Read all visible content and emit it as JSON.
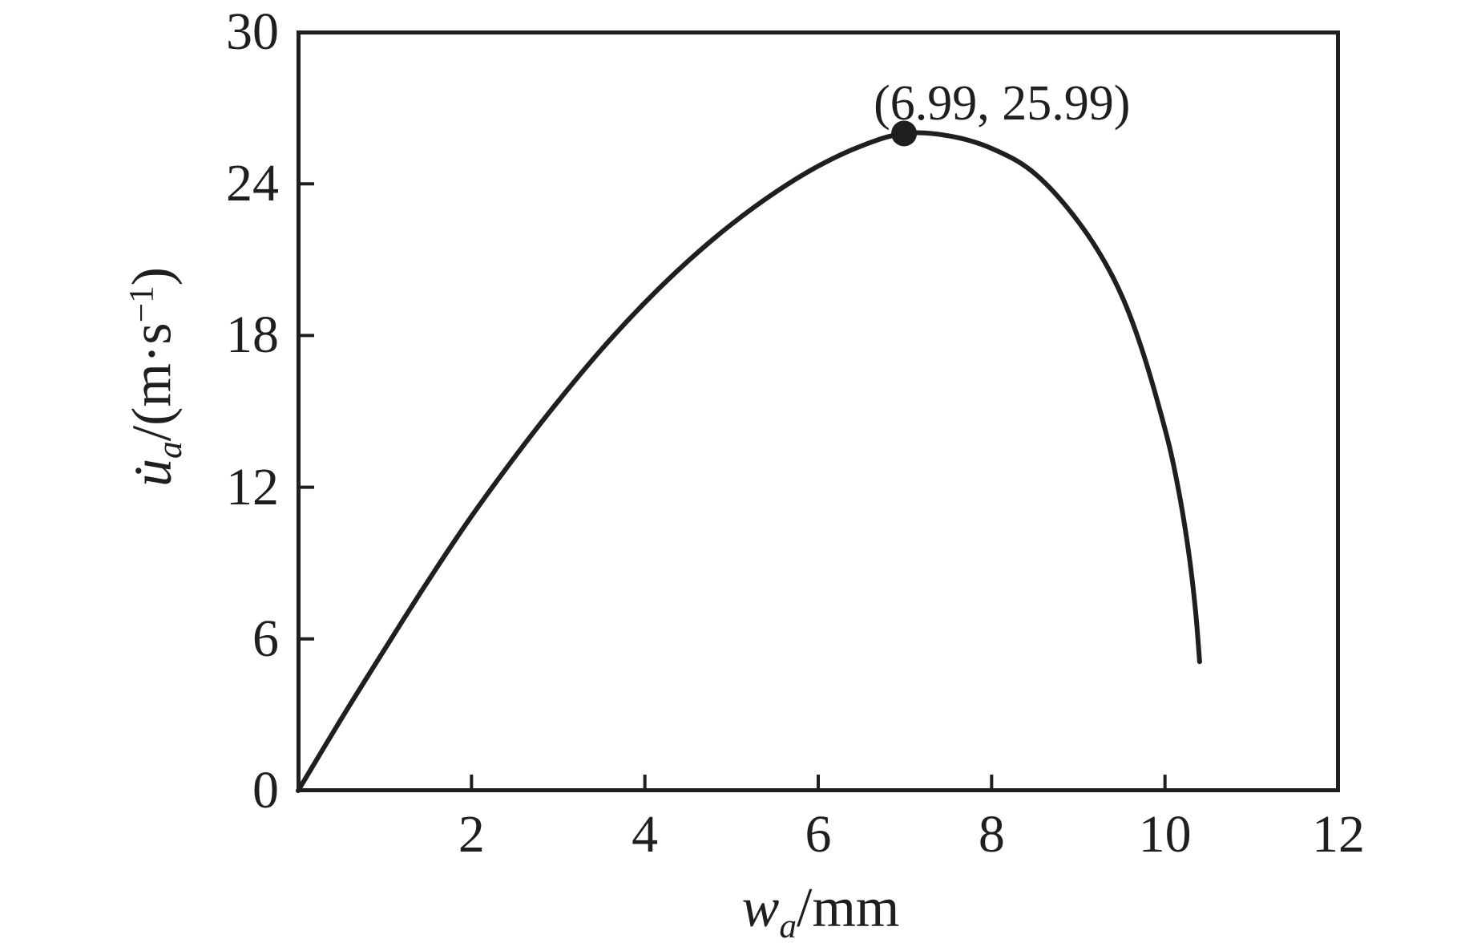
{
  "chart_data": {
    "type": "line",
    "title": "",
    "xlabel": {
      "variable": "w",
      "subscript": "a",
      "unit": "/mm"
    },
    "ylabel": {
      "variable": "u̇",
      "subscript": "a",
      "unit_prefix": "/(m·s",
      "unit_superscript": "−1",
      "unit_suffix": ")"
    },
    "xlim": [
      0,
      12
    ],
    "ylim": [
      0,
      30
    ],
    "x_tick_values": [
      2,
      4,
      6,
      8,
      10,
      12
    ],
    "x_tick_labels": [
      "2",
      "4",
      "6",
      "8",
      "10",
      "12"
    ],
    "y_tick_values": [
      0,
      6,
      12,
      18,
      24,
      30
    ],
    "y_tick_labels": [
      "0",
      "6",
      "12",
      "18",
      "24",
      "30"
    ],
    "grid": false,
    "legend": null,
    "line_color": "#1f1f1f",
    "background_color": "#ffffff",
    "peak_marker": {
      "x": 6.99,
      "y": 25.99
    },
    "annotation": {
      "text": "(6.99, 25.99)",
      "anchor_x": 6.99,
      "anchor_y": 25.99
    },
    "series": [
      {
        "points": [
          [
            0,
            0
          ],
          [
            0.5,
            2.85
          ],
          [
            1,
            5.6
          ],
          [
            1.5,
            8.3
          ],
          [
            2,
            10.85
          ],
          [
            2.5,
            13.2
          ],
          [
            3,
            15.4
          ],
          [
            3.5,
            17.45
          ],
          [
            4,
            19.3
          ],
          [
            4.5,
            20.95
          ],
          [
            5,
            22.4
          ],
          [
            5.5,
            23.65
          ],
          [
            6,
            24.7
          ],
          [
            6.5,
            25.5
          ],
          [
            6.99,
            25.99
          ],
          [
            7.5,
            25.9
          ],
          [
            8,
            25.4
          ],
          [
            8.5,
            24.4
          ],
          [
            9,
            22.5
          ],
          [
            9.4,
            20.3
          ],
          [
            9.7,
            17.8
          ],
          [
            10,
            14.3
          ],
          [
            10.15,
            12
          ],
          [
            10.27,
            9.5
          ],
          [
            10.35,
            7.2
          ],
          [
            10.4,
            5.1
          ]
        ]
      }
    ]
  }
}
